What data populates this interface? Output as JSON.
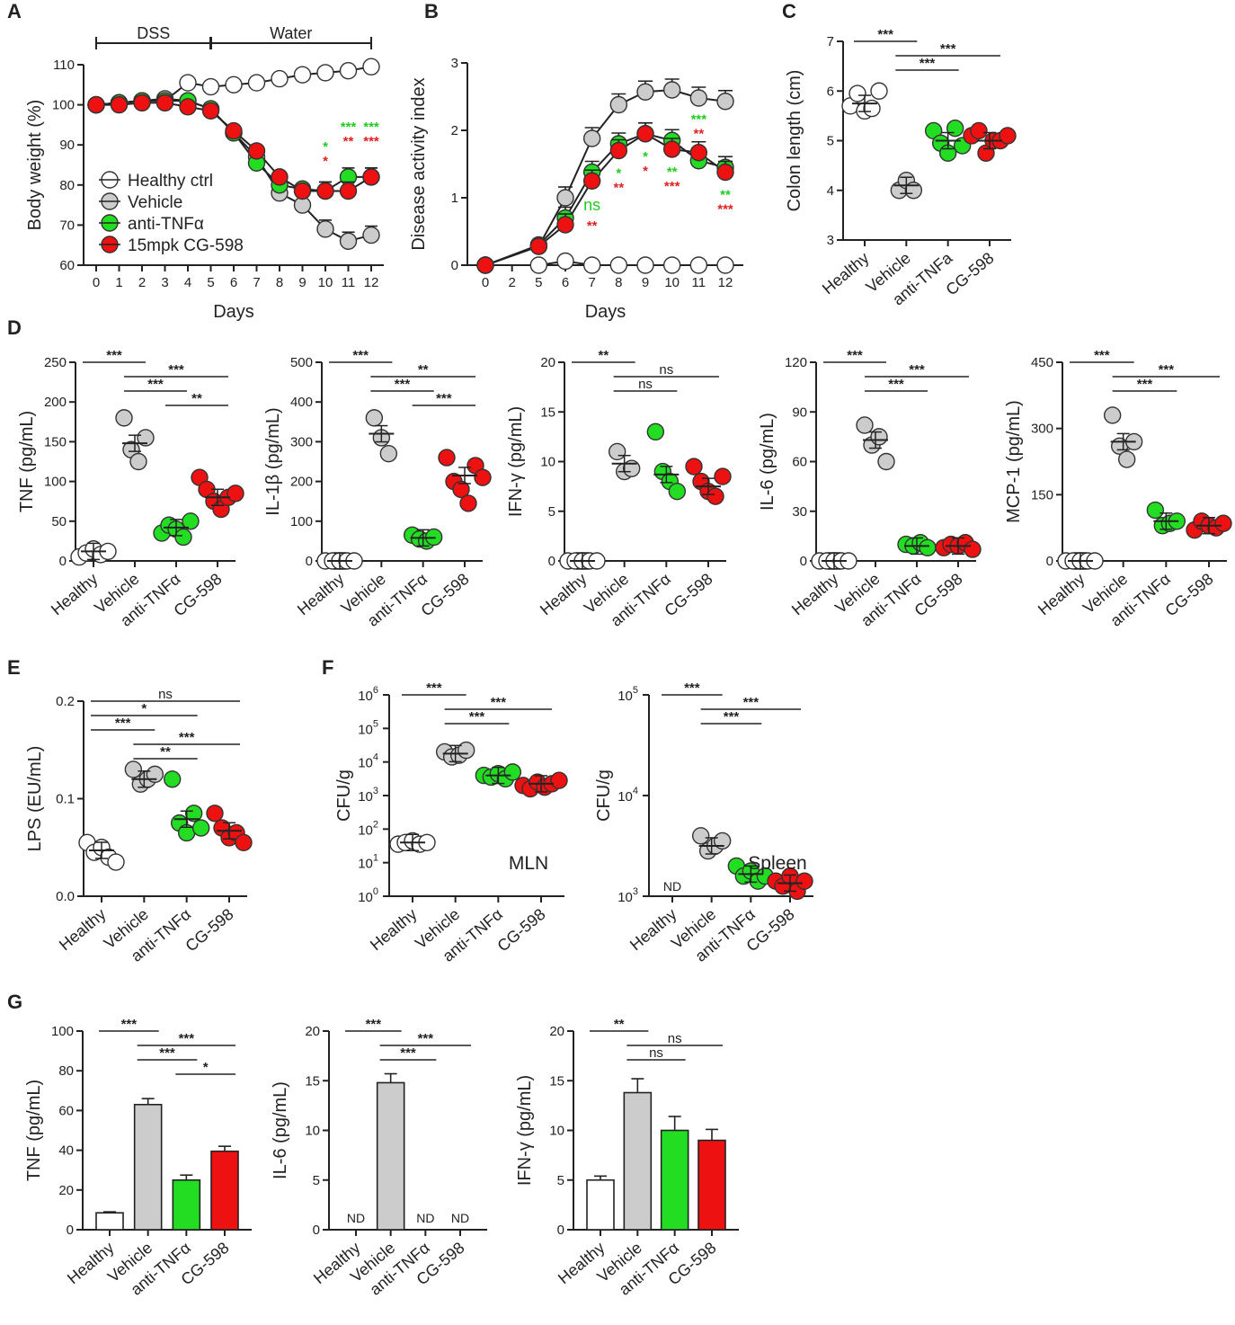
{
  "colors": {
    "healthy": "#ffffff",
    "vehicle": "#cccccc",
    "anti": "#22dd22",
    "cg": "#ee1111",
    "sig_green": "#22cc22",
    "sig_red": "#dd2222"
  },
  "chart_data": [
    {
      "id": "A",
      "type": "line",
      "panel": "A",
      "xlabel": "Days",
      "ylabel": "Body weight (%)",
      "phase_labels": [
        "DSS",
        "Water"
      ],
      "ylim": [
        60,
        110
      ],
      "yticks": [
        "60",
        "70",
        "80",
        "90",
        "100",
        "110"
      ],
      "x": [
        0,
        1,
        2,
        3,
        4,
        5,
        6,
        7,
        8,
        9,
        10,
        11,
        12
      ],
      "xticks": [
        "0",
        "1",
        "2",
        "3",
        "4",
        "5",
        "6",
        "7",
        "8",
        "9",
        "10",
        "11",
        "12"
      ],
      "series": [
        {
          "name": "Healthy ctrl",
          "color_key": "healthy",
          "values": [
            100,
            100.5,
            101,
            101,
            105.5,
            104.5,
            105,
            105.5,
            106.5,
            107.5,
            108,
            108.5,
            109.5
          ]
        },
        {
          "name": "Vehicle",
          "color_key": "vehicle",
          "values": [
            100,
            100.5,
            101,
            101.5,
            101,
            99,
            93,
            87,
            78,
            75,
            69,
            66,
            67.5
          ]
        },
        {
          "name": "anti-TNFα",
          "color_key": "anti",
          "values": [
            100,
            100.5,
            101,
            101,
            101,
            99,
            93,
            85.5,
            80,
            79,
            78.5,
            82,
            82
          ]
        },
        {
          "name": "15mpk CG-598",
          "color_key": "cg",
          "values": [
            100,
            100,
            100.5,
            100.5,
            99.5,
            98.5,
            93.5,
            88.5,
            82,
            78.5,
            78.5,
            78.5,
            82
          ]
        }
      ],
      "significance": [
        {
          "x": 10,
          "green": "*",
          "red": "*"
        },
        {
          "x": 11,
          "green": "***",
          "red": "**"
        },
        {
          "x": 12,
          "green": "***",
          "red": "***"
        }
      ]
    },
    {
      "id": "B",
      "type": "line",
      "panel": "B",
      "xlabel": "Days",
      "ylabel": "Disease activity index",
      "ylim": [
        0,
        3
      ],
      "yticks": [
        "0",
        "1",
        "2",
        "3"
      ],
      "x": [
        0,
        5,
        6,
        7,
        8,
        9,
        10,
        11,
        12
      ],
      "xticks": [
        "0",
        "2",
        "5",
        "6",
        "7",
        "8",
        "9",
        "10",
        "11",
        "12"
      ],
      "series": [
        {
          "name": "Healthy ctrl",
          "color_key": "healthy",
          "values": [
            0,
            0,
            0.06,
            0,
            0,
            0,
            0,
            0,
            0
          ]
        },
        {
          "name": "Vehicle",
          "color_key": "vehicle",
          "values": [
            0,
            0.28,
            1.0,
            1.88,
            2.38,
            2.57,
            2.6,
            2.48,
            2.43
          ]
        },
        {
          "name": "anti-TNFα",
          "color_key": "anti",
          "values": [
            0,
            0.3,
            0.7,
            1.38,
            1.8,
            1.95,
            1.85,
            1.55,
            1.45
          ]
        },
        {
          "name": "15mpk CG-598",
          "color_key": "cg",
          "values": [
            0,
            0.28,
            0.6,
            1.25,
            1.7,
            1.95,
            1.72,
            1.67,
            1.38
          ]
        }
      ],
      "significance": [
        {
          "x": 7,
          "green": "ns",
          "red": "**"
        },
        {
          "x": 8,
          "green": "*",
          "red": "**"
        },
        {
          "x": 9,
          "green": "*",
          "red": "*"
        },
        {
          "x": 10,
          "green": "**",
          "red": "***"
        },
        {
          "x": 11,
          "green": "***",
          "red": "**"
        },
        {
          "x": 12,
          "green": "**",
          "red": "***"
        }
      ]
    },
    {
      "id": "C",
      "type": "scatter",
      "panel": "C",
      "ylabel": "Colon length (cm)",
      "ylim": [
        3,
        7
      ],
      "yticks": [
        "3",
        "4",
        "5",
        "6",
        "7"
      ],
      "categories": [
        "Healthy",
        "Vehicle",
        "anti-TNFa",
        "CG-598"
      ],
      "points": [
        [
          5.7,
          5.95,
          5.6,
          5.65,
          6.0
        ],
        [
          4.0,
          4.2,
          4.0
        ],
        [
          5.2,
          4.95,
          4.75,
          5.25,
          4.9
        ],
        [
          5.1,
          5.2,
          4.75,
          5.0,
          5.0,
          5.1
        ]
      ],
      "means": [
        5.75,
        4.1,
        5.0,
        5.0
      ],
      "brackets": [
        {
          "from": 0,
          "to": 1,
          "label": "***"
        },
        {
          "from": 1,
          "to": 3,
          "label": "***"
        },
        {
          "from": 1,
          "to": 2,
          "label": "***"
        }
      ]
    },
    {
      "id": "D1",
      "type": "scatter",
      "panel": "D",
      "ylabel": "TNF (pg/mL)",
      "ylim": [
        0,
        250
      ],
      "yticks": [
        "0",
        "50",
        "100",
        "150",
        "200",
        "250"
      ],
      "categories": [
        "Healthy",
        "Vehicle",
        "anti-TNFα",
        "CG-598"
      ],
      "points": [
        [
          5,
          10,
          15,
          8,
          12
        ],
        [
          180,
          140,
          125,
          155
        ],
        [
          35,
          45,
          40,
          30,
          50
        ],
        [
          105,
          90,
          75,
          65,
          80,
          85
        ]
      ],
      "means": [
        12,
        148,
        42,
        80
      ],
      "brackets": [
        {
          "from": 0,
          "to": 1,
          "label": "***"
        },
        {
          "from": 1,
          "to": 3,
          "label": "***"
        },
        {
          "from": 1,
          "to": 2,
          "label": "***"
        },
        {
          "from": 2,
          "to": 3,
          "label": "**"
        }
      ]
    },
    {
      "id": "D2",
      "type": "scatter",
      "panel": "D",
      "ylabel": "IL-1β (pg/mL)",
      "ylim": [
        0,
        500
      ],
      "yticks": [
        "0",
        "100",
        "200",
        "300",
        "400",
        "500"
      ],
      "categories": [
        "Healthy",
        "Vehicle",
        "anti-TNFα",
        "CG-598"
      ],
      "points": [
        [
          0,
          0,
          0,
          0,
          0
        ],
        [
          360,
          310,
          270
        ],
        [
          65,
          55,
          50,
          60
        ],
        [
          260,
          200,
          180,
          145,
          240,
          210
        ]
      ],
      "means": [
        0,
        320,
        58,
        215
      ],
      "brackets": [
        {
          "from": 0,
          "to": 1,
          "label": "***"
        },
        {
          "from": 1,
          "to": 3,
          "label": "**"
        },
        {
          "from": 1,
          "to": 2,
          "label": "***"
        },
        {
          "from": 2,
          "to": 3,
          "label": "***"
        }
      ]
    },
    {
      "id": "D3",
      "type": "scatter",
      "panel": "D",
      "ylabel": "IFN-γ (pg/mL)",
      "ylim": [
        0,
        20
      ],
      "yticks": [
        "0",
        "5",
        "10",
        "15",
        "20"
      ],
      "categories": [
        "Healthy",
        "Vehicle",
        "anti-TNFα",
        "CG-598"
      ],
      "points": [
        [
          0,
          0,
          0,
          0,
          0
        ],
        [
          11,
          9,
          9.3
        ],
        [
          13,
          9,
          8,
          7
        ],
        [
          9.5,
          8,
          7,
          6.5,
          8.5
        ]
      ],
      "means": [
        0,
        9.8,
        8.7,
        7.5
      ],
      "brackets": [
        {
          "from": 0,
          "to": 1,
          "label": "**"
        },
        {
          "from": 1,
          "to": 3,
          "label": "ns"
        },
        {
          "from": 1,
          "to": 2,
          "label": "ns"
        }
      ]
    },
    {
      "id": "D4",
      "type": "scatter",
      "panel": "D",
      "ylabel": "IL-6 (pg/mL)",
      "ylim": [
        0,
        120
      ],
      "yticks": [
        "0",
        "30",
        "60",
        "90",
        "120"
      ],
      "categories": [
        "Healthy",
        "Vehicle",
        "anti-TNFα",
        "CG-598"
      ],
      "points": [
        [
          0,
          0,
          0,
          0,
          0
        ],
        [
          82,
          70,
          75,
          60
        ],
        [
          10,
          9,
          11,
          8
        ],
        [
          8,
          10,
          9,
          11,
          7
        ]
      ],
      "means": [
        0,
        73,
        9,
        9
      ],
      "brackets": [
        {
          "from": 0,
          "to": 1,
          "label": "***"
        },
        {
          "from": 1,
          "to": 3,
          "label": "***"
        },
        {
          "from": 1,
          "to": 2,
          "label": "***"
        }
      ]
    },
    {
      "id": "D5",
      "type": "scatter",
      "panel": "D",
      "ylabel": "MCP-1 (pg/mL)",
      "ylim": [
        0,
        450
      ],
      "yticks": [
        "0",
        "150",
        "300",
        "450"
      ],
      "categories": [
        "Healthy",
        "Vehicle",
        "anti-TNFα",
        "CG-598"
      ],
      "points": [
        [
          0,
          0,
          0,
          0,
          0
        ],
        [
          330,
          260,
          230,
          270
        ],
        [
          115,
          80,
          85,
          90
        ],
        [
          70,
          90,
          80,
          75,
          85
        ]
      ],
      "means": [
        0,
        270,
        90,
        80
      ],
      "brackets": [
        {
          "from": 0,
          "to": 1,
          "label": "***"
        },
        {
          "from": 1,
          "to": 3,
          "label": "***"
        },
        {
          "from": 1,
          "to": 2,
          "label": "***"
        }
      ]
    },
    {
      "id": "E",
      "type": "scatter",
      "panel": "E",
      "ylabel": "LPS (EU/mL)",
      "ylim": [
        0,
        0.2
      ],
      "yticks": [
        "0.0",
        "0.1",
        "0.2"
      ],
      "categories": [
        "Healthy",
        "Vehicle",
        "anti-TNFα",
        "CG-598"
      ],
      "points": [
        [
          0.055,
          0.045,
          0.05,
          0.04,
          0.035
        ],
        [
          0.13,
          0.115,
          0.12,
          0.125
        ],
        [
          0.12,
          0.075,
          0.065,
          0.085,
          0.07
        ],
        [
          0.085,
          0.07,
          0.06,
          0.065,
          0.055
        ]
      ],
      "means": [
        0.047,
        0.12,
        0.079,
        0.067
      ],
      "brackets": [
        {
          "from": 0,
          "to": 3,
          "label": "ns"
        },
        {
          "from": 0,
          "to": 2,
          "label": "*"
        },
        {
          "from": 0,
          "to": 1,
          "label": "***"
        },
        {
          "from": 1,
          "to": 3,
          "label": "***"
        },
        {
          "from": 1,
          "to": 2,
          "label": "**"
        }
      ]
    },
    {
      "id": "F1",
      "type": "scatter",
      "panel": "F",
      "ylabel": "CFU/g",
      "scale": "log",
      "ylim": [
        0,
        6
      ],
      "yticks": [
        "10^0",
        "10^1",
        "10^2",
        "10^3",
        "10^4",
        "10^5",
        "10^6"
      ],
      "categories": [
        "Healthy",
        "Vehicle",
        "anti-TNFα",
        "CG-598"
      ],
      "site": "MLN",
      "points": [
        [
          1.55,
          1.6,
          1.65,
          1.55,
          1.6
        ],
        [
          4.3,
          4.15,
          4.2,
          4.35
        ],
        [
          3.6,
          3.55,
          3.65,
          3.5,
          3.7
        ],
        [
          3.3,
          3.2,
          3.4,
          3.25,
          3.35,
          3.45
        ]
      ],
      "means": [
        1.6,
        4.25,
        3.6,
        3.35
      ],
      "brackets": [
        {
          "from": 0,
          "to": 1,
          "label": "***"
        },
        {
          "from": 1,
          "to": 3,
          "label": "***"
        },
        {
          "from": 1,
          "to": 2,
          "label": "***"
        }
      ]
    },
    {
      "id": "F2",
      "type": "scatter",
      "panel": "F",
      "ylabel": "CFU/g",
      "scale": "log",
      "ylim": [
        3,
        5
      ],
      "yticks": [
        "10^3",
        "10^4",
        "10^5"
      ],
      "categories": [
        "Healthy",
        "Vehicle",
        "anti-TNFα",
        "CG-598"
      ],
      "site": "Spleen",
      "nd_label": "ND",
      "points": [
        null,
        [
          3.6,
          3.45,
          3.5,
          3.55
        ],
        [
          3.3,
          3.2,
          3.25,
          3.15,
          3.2
        ],
        [
          3.15,
          3.1,
          3.2,
          3.05,
          3.15
        ]
      ],
      "means": [
        null,
        3.5,
        3.22,
        3.13
      ],
      "brackets": [
        {
          "from": 0,
          "to": 1,
          "label": "***"
        },
        {
          "from": 1,
          "to": 3,
          "label": "***"
        },
        {
          "from": 1,
          "to": 2,
          "label": "***"
        }
      ]
    },
    {
      "id": "G1",
      "type": "bar",
      "panel": "G",
      "ylabel": "TNF (pg/mL)",
      "ylim": [
        0,
        100
      ],
      "yticks": [
        "0",
        "20",
        "40",
        "60",
        "80",
        "100"
      ],
      "categories": [
        "Healthy",
        "Vehicle",
        "anti-TNFα",
        "CG-598"
      ],
      "values": [
        8.5,
        63,
        25,
        39.5
      ],
      "errors": [
        0.5,
        3,
        2.5,
        2.5
      ],
      "brackets": [
        {
          "from": 0,
          "to": 1,
          "label": "***"
        },
        {
          "from": 1,
          "to": 3,
          "label": "***"
        },
        {
          "from": 1,
          "to": 2,
          "label": "***"
        },
        {
          "from": 2,
          "to": 3,
          "label": "*"
        }
      ]
    },
    {
      "id": "G2",
      "type": "bar",
      "panel": "G",
      "ylabel": "IL-6 (pg/mL)",
      "ylim": [
        0,
        20
      ],
      "yticks": [
        "0",
        "5",
        "10",
        "15",
        "20"
      ],
      "categories": [
        "Healthy",
        "Vehicle",
        "anti-TNFα",
        "CG-598"
      ],
      "values": [
        null,
        14.8,
        null,
        null
      ],
      "errors": [
        null,
        0.9,
        null,
        null
      ],
      "nd_label": "ND",
      "brackets": [
        {
          "from": 0,
          "to": 1,
          "label": "***"
        },
        {
          "from": 1,
          "to": 3,
          "label": "***"
        },
        {
          "from": 1,
          "to": 2,
          "label": "***"
        }
      ]
    },
    {
      "id": "G3",
      "type": "bar",
      "panel": "G",
      "ylabel": "IFN-γ (pg/mL)",
      "ylim": [
        0,
        20
      ],
      "yticks": [
        "0",
        "5",
        "10",
        "15",
        "20"
      ],
      "categories": [
        "Healthy",
        "Vehicle",
        "anti-TNFα",
        "CG-598"
      ],
      "values": [
        5,
        13.8,
        10,
        9
      ],
      "errors": [
        0.4,
        1.4,
        1.4,
        1.1
      ],
      "brackets": [
        {
          "from": 0,
          "to": 1,
          "label": "**"
        },
        {
          "from": 1,
          "to": 3,
          "label": "ns"
        },
        {
          "from": 1,
          "to": 2,
          "label": "ns"
        }
      ]
    }
  ]
}
